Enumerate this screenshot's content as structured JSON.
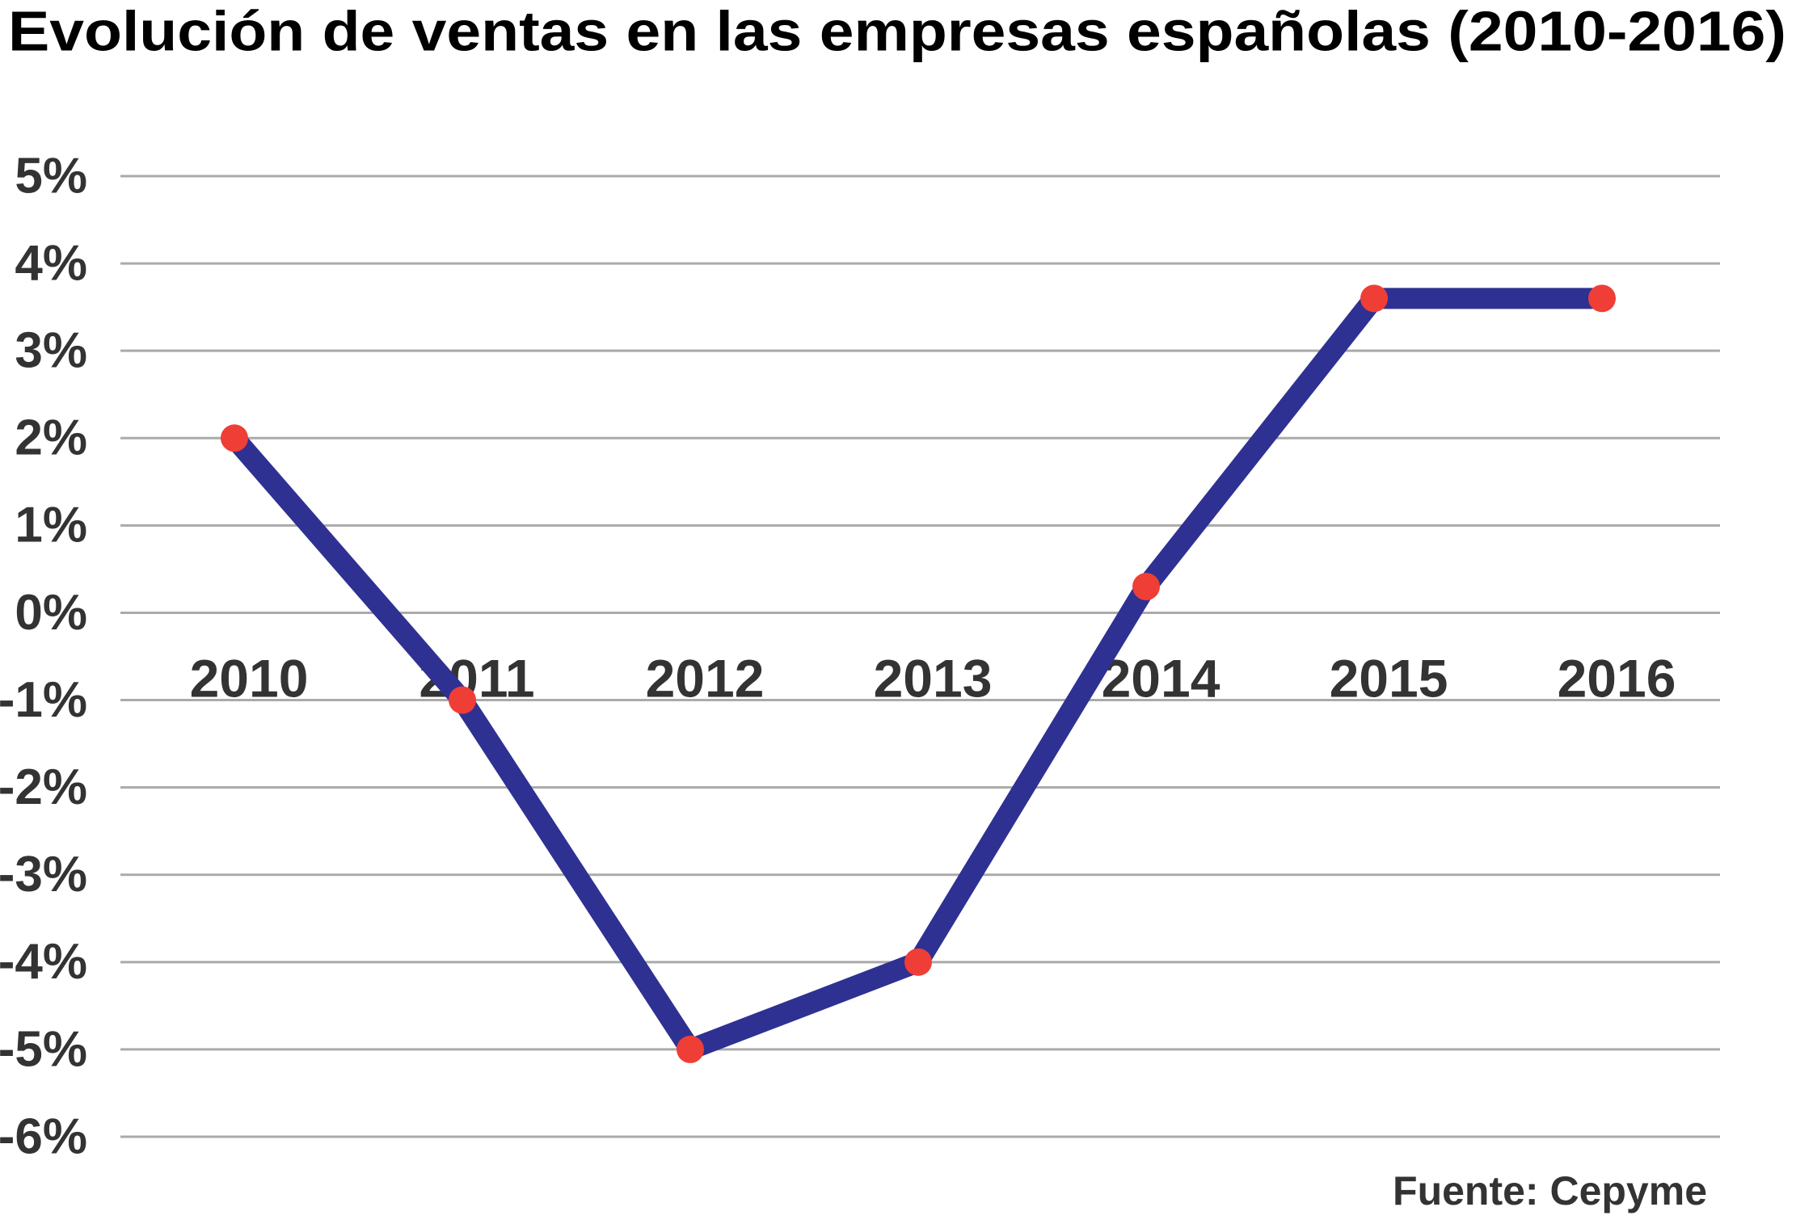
{
  "chart_data": {
    "type": "line",
    "title": "Evolución de ventas en las empresas españolas (2010-2016)",
    "categories": [
      "2010",
      "2011",
      "2012",
      "2013",
      "2014",
      "2015",
      "2016"
    ],
    "series": [
      {
        "values": [
          2.0,
          -1.0,
          -5.0,
          -4.0,
          0.3,
          3.6,
          3.6
        ],
        "color": "#2e3192",
        "marker_color": "#ef3e36"
      }
    ],
    "ylim": [
      -6,
      5
    ],
    "yticks": [
      {
        "value": 5,
        "label": "5%"
      },
      {
        "value": 4,
        "label": "4%"
      },
      {
        "value": 3,
        "label": "3%"
      },
      {
        "value": 2,
        "label": "2%"
      },
      {
        "value": 1,
        "label": "1%"
      },
      {
        "value": 0,
        "label": "0%"
      },
      {
        "value": -1,
        "label": "-1%"
      },
      {
        "value": -2,
        "label": "-2%"
      },
      {
        "value": -3,
        "label": "-3%"
      },
      {
        "value": -4,
        "label": "-4%"
      },
      {
        "value": -5,
        "label": "-5%"
      },
      {
        "value": -6,
        "label": "-6%"
      }
    ],
    "grid": true,
    "source": "Fuente: Cepyme"
  }
}
